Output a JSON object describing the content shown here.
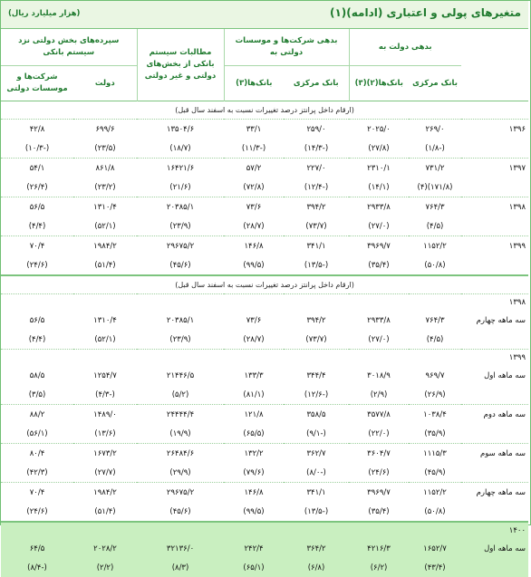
{
  "title": "متغیرهای پولی و اعتباری (ادامه)(۱)",
  "unit": "(هزار میلیارد ریال)",
  "groups": {
    "gov_debt": "بدهی دولت به",
    "comp_debt": "بدهی شرکت‌ها و موسسات دولتی به",
    "claims": "مطالبات سیستم بانکی از بخش‌های دولتی و غیر دولتی",
    "deposits": "سپرده‌های بخش دولتی نزد سیستم بانکی"
  },
  "subheaders": {
    "central_bank": "بانک مرکزی",
    "banks_gov": "بانک‌ها(۲)(۳)",
    "central_bank2": "بانک مرکزی",
    "banks3": "بانک‌ها(۳)",
    "government": "دولت",
    "companies": "شرکت‌ها و موسسات دولتی"
  },
  "note1": "(ارقام داخل پرانتز درصد تغییرات نسبت به اسفند سال قبل)",
  "note2": "(ارقام داخل پرانتز درصد تغییرات نسبت به اسفند سال قبل)",
  "annual": [
    {
      "label": "۱۳۹۶",
      "v": [
        "۲۶۹/۰",
        "۲۰۲۵/۰",
        "۲۵۹/۰",
        "۳۳/۱",
        "۱۳۵۰۴/۶",
        "۶۹۹/۶",
        "۴۲/۸"
      ],
      "p": [
        "(۱/۸-)",
        "(۲۷/۸)",
        "(۱۴/۳-)",
        "(۱۱/۳-)",
        "(۱۸/۷)",
        "(۲۳/۵)",
        "(۱۰/۳-)"
      ]
    },
    {
      "label": "۱۳۹۷",
      "v": [
        "۷۳۱/۲",
        "۲۳۱۰/۱",
        "۲۲۷/۰",
        "۵۷/۲",
        "۱۶۴۲۱/۶",
        "۸۶۱/۸",
        "۵۴/۱"
      ],
      "p": [
        "(۴)(۱۷۱/۸)",
        "(۱۴/۱)",
        "(۱۲/۴-)",
        "(۷۲/۸)",
        "(۲۱/۶)",
        "(۲۳/۲)",
        "(۲۶/۴)"
      ]
    },
    {
      "label": "۱۳۹۸",
      "v": [
        "۷۶۴/۳",
        "۲۹۳۳/۸",
        "۳۹۴/۲",
        "۷۳/۶",
        "۲۰۳۸۵/۱",
        "۱۳۱۰/۴",
        "۵۶/۵"
      ],
      "p": [
        "(۴/۵)",
        "(۲۷/۰)",
        "(۷۳/۷)",
        "(۲۸/۷)",
        "(۲۳/۹)",
        "(۵۲/۱)",
        "(۴/۴)"
      ]
    },
    {
      "label": "۱۳۹۹",
      "v": [
        "۱۱۵۲/۲",
        "۳۹۶۹/۷",
        "۳۴۱/۱",
        "۱۴۶/۸",
        "۲۹۶۷۵/۲",
        "۱۹۸۴/۲",
        "۷۰/۴"
      ],
      "p": [
        "(۵۰/۸)",
        "(۳۵/۴)",
        "(۱۳/۵-)",
        "(۹۹/۵)",
        "(۴۵/۶)",
        "(۵۱/۴)",
        "(۲۴/۶)"
      ]
    }
  ],
  "years": {
    "y1398": "۱۳۹۸",
    "y1399": "۱۳۹۹",
    "y1400": "۱۴۰۰"
  },
  "quarterly": [
    {
      "label": "سه ماهه چهارم",
      "v": [
        "۷۶۴/۳",
        "۲۹۳۳/۸",
        "۳۹۴/۲",
        "۷۳/۶",
        "۲۰۳۸۵/۱",
        "۱۳۱۰/۴",
        "۵۶/۵"
      ],
      "p": [
        "(۴/۵)",
        "(۲۷/۰)",
        "(۷۳/۷)",
        "(۲۸/۷)",
        "(۲۳/۹)",
        "(۵۲/۱)",
        "(۴/۴)"
      ]
    },
    {
      "label": "سه ماهه اول",
      "v": [
        "۹۶۹/۷",
        "۳۰۱۸/۹",
        "۳۴۴/۴",
        "۱۳۳/۳",
        "۲۱۴۴۶/۵",
        "۱۲۵۴/۷",
        "۵۸/۵"
      ],
      "p": [
        "(۲۶/۹)",
        "(۲/۹)",
        "(۱۲/۶-)",
        "(۸۱/۱)",
        "(۵/۲)",
        "(۴/۳-)",
        "(۳/۵)"
      ]
    },
    {
      "label": "سه ماهه دوم",
      "v": [
        "۱۰۳۸/۴",
        "۳۵۷۷/۸",
        "۳۵۸/۵",
        "۱۲۱/۸",
        "۲۴۴۴۴/۴",
        "۱۴۸۹/۰",
        "۸۸/۲"
      ],
      "p": [
        "(۳۵/۹)",
        "(۲۲/۰)",
        "(۹/۱-)",
        "(۶۵/۵)",
        "(۱۹/۹)",
        "(۱۳/۶)",
        "(۵۶/۱)"
      ]
    },
    {
      "label": "سه ماهه سوم",
      "v": [
        "۱۱۱۵/۳",
        "۳۶۰۴/۷",
        "۳۶۲/۷",
        "۱۳۲/۲",
        "۲۶۴۸۴/۶",
        "۱۶۷۳/۲",
        "۸۰/۴"
      ],
      "p": [
        "(۴۵/۹)",
        "(۲۴/۶)",
        "(۸/۰-)",
        "(۷۹/۶)",
        "(۲۹/۹)",
        "(۲۷/۷)",
        "(۴۲/۳)"
      ]
    },
    {
      "label": "سه ماهه چهارم",
      "v": [
        "۱۱۵۲/۲",
        "۳۹۶۹/۷",
        "۳۴۱/۱",
        "۱۴۶/۸",
        "۲۹۶۷۵/۲",
        "۱۹۸۴/۲",
        "۷۰/۴"
      ],
      "p": [
        "(۵۰/۸)",
        "(۳۵/۴)",
        "(۱۳/۵-)",
        "(۹۹/۵)",
        "(۴۵/۶)",
        "(۵۱/۴)",
        "(۲۴/۶)"
      ]
    },
    {
      "label": "سه ماهه اول",
      "v": [
        "۱۶۵۲/۷",
        "۴۲۱۶/۳",
        "۳۶۴/۲",
        "۲۴۲/۴",
        "۳۲۱۳۶/۰",
        "۲۰۲۸/۲",
        "۶۴/۵"
      ],
      "p": [
        "(۴۳/۴)",
        "(۶/۲)",
        "(۶/۸)",
        "(۶۵/۱)",
        "(۸/۳)",
        "(۲/۲)",
        "(۸/۴-)"
      ]
    }
  ]
}
